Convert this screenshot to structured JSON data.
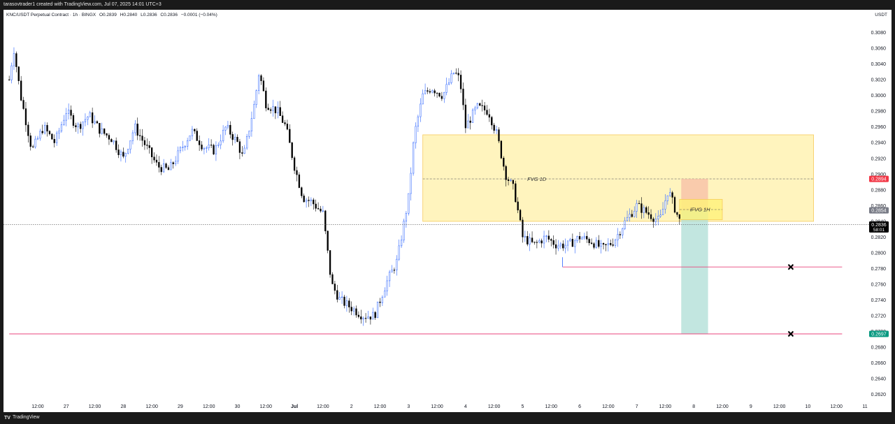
{
  "header": {
    "caption": "tarasovtrader1 created with TradingView.com, Jul 07, 2025 14:01 UTC+3"
  },
  "legend": {
    "symbol": "KNC/USDT Perpetual Contract · 1h · BINGX",
    "open": "O0.2839",
    "high": "H0.2840",
    "low": "L0.2836",
    "close": "C0.2836",
    "change": "−0.0001 (−0.04%)"
  },
  "currency": "USDT",
  "footer": {
    "logo": "TV",
    "brand": "TradingView"
  },
  "colors": {
    "up": "#2962ff",
    "down": "#000000",
    "zone": "#fff3b3",
    "zone_border": "#f5c242",
    "level_line": "#e8467c",
    "target_zone": "#b3e0d8",
    "stop_zone": "#f7c0a8",
    "price_red": "#f23645",
    "price_grey": "#787b86",
    "price_black": "#000000",
    "price_green": "#089981"
  },
  "chart_data": {
    "type": "candlestick",
    "ylim": [
      0.261,
      0.31
    ],
    "y_ticks": [
      "0.3080",
      "0.3060",
      "0.3040",
      "0.3020",
      "0.3000",
      "0.2980",
      "0.2960",
      "0.2940",
      "0.2920",
      "0.2900",
      "0.2880",
      "0.2860",
      "0.2840",
      "0.2820",
      "0.2800",
      "0.2780",
      "0.2760",
      "0.2740",
      "0.2720",
      "0.2700",
      "0.2680",
      "0.2660",
      "0.2640",
      "0.2620"
    ],
    "x_range_days": [
      0,
      12.25
    ],
    "x_labels": [
      {
        "t": 0.5,
        "label": "12:00",
        "bold": false
      },
      {
        "t": 1.0,
        "label": "27",
        "bold": false
      },
      {
        "t": 1.5,
        "label": "12:00",
        "bold": false
      },
      {
        "t": 2.0,
        "label": "28",
        "bold": false
      },
      {
        "t": 2.5,
        "label": "12:00",
        "bold": false
      },
      {
        "t": 3.0,
        "label": "29",
        "bold": false
      },
      {
        "t": 3.5,
        "label": "12:00",
        "bold": false
      },
      {
        "t": 4.0,
        "label": "30",
        "bold": false
      },
      {
        "t": 4.5,
        "label": "12:00",
        "bold": false
      },
      {
        "t": 5.0,
        "label": "Jul",
        "bold": true
      },
      {
        "t": 5.5,
        "label": "12:00",
        "bold": false
      },
      {
        "t": 6.0,
        "label": "2",
        "bold": false
      },
      {
        "t": 6.5,
        "label": "12:00",
        "bold": false
      },
      {
        "t": 7.0,
        "label": "3",
        "bold": false
      },
      {
        "t": 7.5,
        "label": "12:00",
        "bold": false
      },
      {
        "t": 8.0,
        "label": "4",
        "bold": false
      },
      {
        "t": 8.5,
        "label": "12:00",
        "bold": false
      },
      {
        "t": 9.0,
        "label": "5",
        "bold": false
      },
      {
        "t": 9.5,
        "label": "12:00",
        "bold": false
      },
      {
        "t": 10.0,
        "label": "6",
        "bold": false
      },
      {
        "t": 10.5,
        "label": "12:00",
        "bold": false
      },
      {
        "t": 11.0,
        "label": "7",
        "bold": false
      },
      {
        "t": 11.5,
        "label": "12:00",
        "bold": false
      },
      {
        "t": 12.0,
        "label": "8",
        "bold": false
      },
      {
        "t": 12.5,
        "label": "12:00",
        "bold": false
      },
      {
        "t": 13.0,
        "label": "9",
        "bold": false
      },
      {
        "t": 13.5,
        "label": "12:00",
        "bold": false
      },
      {
        "t": 14.0,
        "label": "10",
        "bold": false
      },
      {
        "t": 14.5,
        "label": "12:00",
        "bold": false
      },
      {
        "t": 15.0,
        "label": "11",
        "bold": false
      }
    ],
    "price_path": [
      [
        0.0,
        0.302
      ],
      [
        0.08,
        0.306
      ],
      [
        0.2,
        0.3
      ],
      [
        0.4,
        0.293
      ],
      [
        0.6,
        0.296
      ],
      [
        0.8,
        0.294
      ],
      [
        1.0,
        0.298
      ],
      [
        1.2,
        0.296
      ],
      [
        1.4,
        0.2975
      ],
      [
        1.6,
        0.2955
      ],
      [
        1.8,
        0.2945
      ],
      [
        2.0,
        0.292
      ],
      [
        2.2,
        0.296
      ],
      [
        2.4,
        0.2935
      ],
      [
        2.6,
        0.291
      ],
      [
        2.8,
        0.2905
      ],
      [
        3.0,
        0.293
      ],
      [
        3.2,
        0.2955
      ],
      [
        3.4,
        0.2935
      ],
      [
        3.6,
        0.293
      ],
      [
        3.8,
        0.296
      ],
      [
        4.0,
        0.294
      ],
      [
        4.1,
        0.292
      ],
      [
        4.3,
        0.299
      ],
      [
        4.38,
        0.303
      ],
      [
        4.5,
        0.299
      ],
      [
        4.7,
        0.298
      ],
      [
        4.85,
        0.296
      ],
      [
        5.0,
        0.291
      ],
      [
        5.15,
        0.287
      ],
      [
        5.3,
        0.2865
      ],
      [
        5.5,
        0.285
      ],
      [
        5.65,
        0.276
      ],
      [
        5.8,
        0.274
      ],
      [
        6.0,
        0.273
      ],
      [
        6.2,
        0.272
      ],
      [
        6.4,
        0.272
      ],
      [
        6.6,
        0.276
      ],
      [
        6.8,
        0.279
      ],
      [
        7.0,
        0.287
      ],
      [
        7.1,
        0.295
      ],
      [
        7.25,
        0.3
      ],
      [
        7.4,
        0.301
      ],
      [
        7.6,
        0.3
      ],
      [
        7.8,
        0.303
      ],
      [
        7.9,
        0.302
      ],
      [
        8.0,
        0.296
      ],
      [
        8.2,
        0.2985
      ],
      [
        8.4,
        0.298
      ],
      [
        8.55,
        0.295
      ],
      [
        8.7,
        0.29
      ],
      [
        8.85,
        0.288
      ],
      [
        9.0,
        0.282
      ],
      [
        9.2,
        0.281
      ],
      [
        9.4,
        0.282
      ],
      [
        9.6,
        0.281
      ],
      [
        9.8,
        0.281
      ],
      [
        10.0,
        0.282
      ],
      [
        10.2,
        0.2815
      ],
      [
        10.4,
        0.2805
      ],
      [
        10.6,
        0.2815
      ],
      [
        10.8,
        0.284
      ],
      [
        11.0,
        0.286
      ],
      [
        11.2,
        0.285
      ],
      [
        11.4,
        0.284
      ],
      [
        11.55,
        0.288
      ],
      [
        11.7,
        0.285
      ],
      [
        11.78,
        0.2836
      ]
    ],
    "annotations": {
      "fvg_1d": {
        "label": "FVG 1D",
        "t0": 7.25,
        "t1": 14.1,
        "y_top": 0.295,
        "y_bottom": 0.284,
        "mid": 0.2894
      },
      "ifvg_1h": {
        "label": "iFVG 1H",
        "t0": 11.75,
        "t1": 12.5,
        "y_top": 0.2868,
        "y_bottom": 0.2842,
        "mid": 0.2855
      },
      "position": {
        "t0": 11.78,
        "t1": 12.25,
        "entry": 0.2854,
        "stop": 0.2894,
        "target": 0.2697
      },
      "level_upper": {
        "t0": 9.7,
        "t1": 14.6,
        "y": 0.2782
      },
      "level_lower": {
        "t0": 0.0,
        "t1": 14.6,
        "y": 0.2697
      },
      "cross_marks": [
        {
          "t": 13.7,
          "y": 0.2782
        },
        {
          "t": 13.7,
          "y": 0.2697
        }
      ],
      "last_price_line": 0.2836
    },
    "price_labels": [
      {
        "y": 0.2894,
        "text": "0.2894",
        "color": "#f23645"
      },
      {
        "y": 0.2854,
        "text": "0.2854",
        "color": "#787b86"
      },
      {
        "y": 0.2836,
        "text": "0.2836",
        "color": "#000000",
        "sub": "58:01"
      },
      {
        "y": 0.2697,
        "text": "0.2697",
        "color": "#089981"
      }
    ]
  }
}
